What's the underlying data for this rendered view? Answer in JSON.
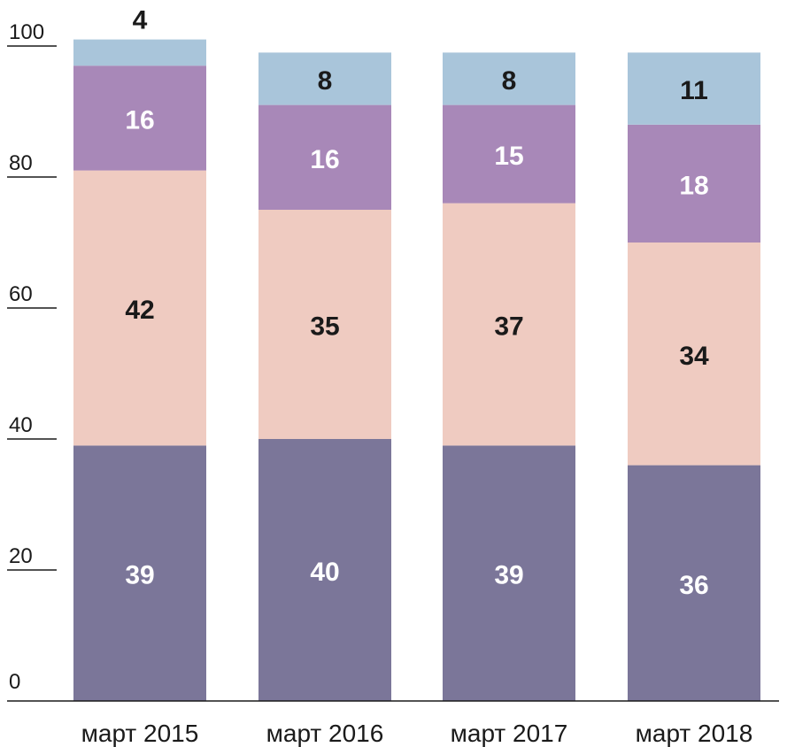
{
  "chart_data": {
    "type": "bar",
    "stacked": true,
    "categories": [
      "март 2015",
      "март 2016",
      "март 2017",
      "март 2018"
    ],
    "series": [
      {
        "values": [
          39,
          40,
          39,
          36
        ],
        "color": "#7b7699",
        "label_color": "#ffffff"
      },
      {
        "values": [
          42,
          35,
          37,
          34
        ],
        "color": "#efcbc1",
        "label_color": "#1a1a1a"
      },
      {
        "values": [
          16,
          16,
          15,
          18
        ],
        "color": "#a888b8",
        "label_color": "#ffffff"
      },
      {
        "values": [
          4,
          8,
          8,
          11
        ],
        "color": "#a9c5da",
        "label_color": "#1a1a1a"
      }
    ],
    "y_ticks": [
      "0",
      "20",
      "40",
      "60",
      "80",
      "100"
    ],
    "ylim": [
      0,
      100
    ],
    "grid": false,
    "title": "",
    "xlabel": "",
    "ylabel": ""
  }
}
